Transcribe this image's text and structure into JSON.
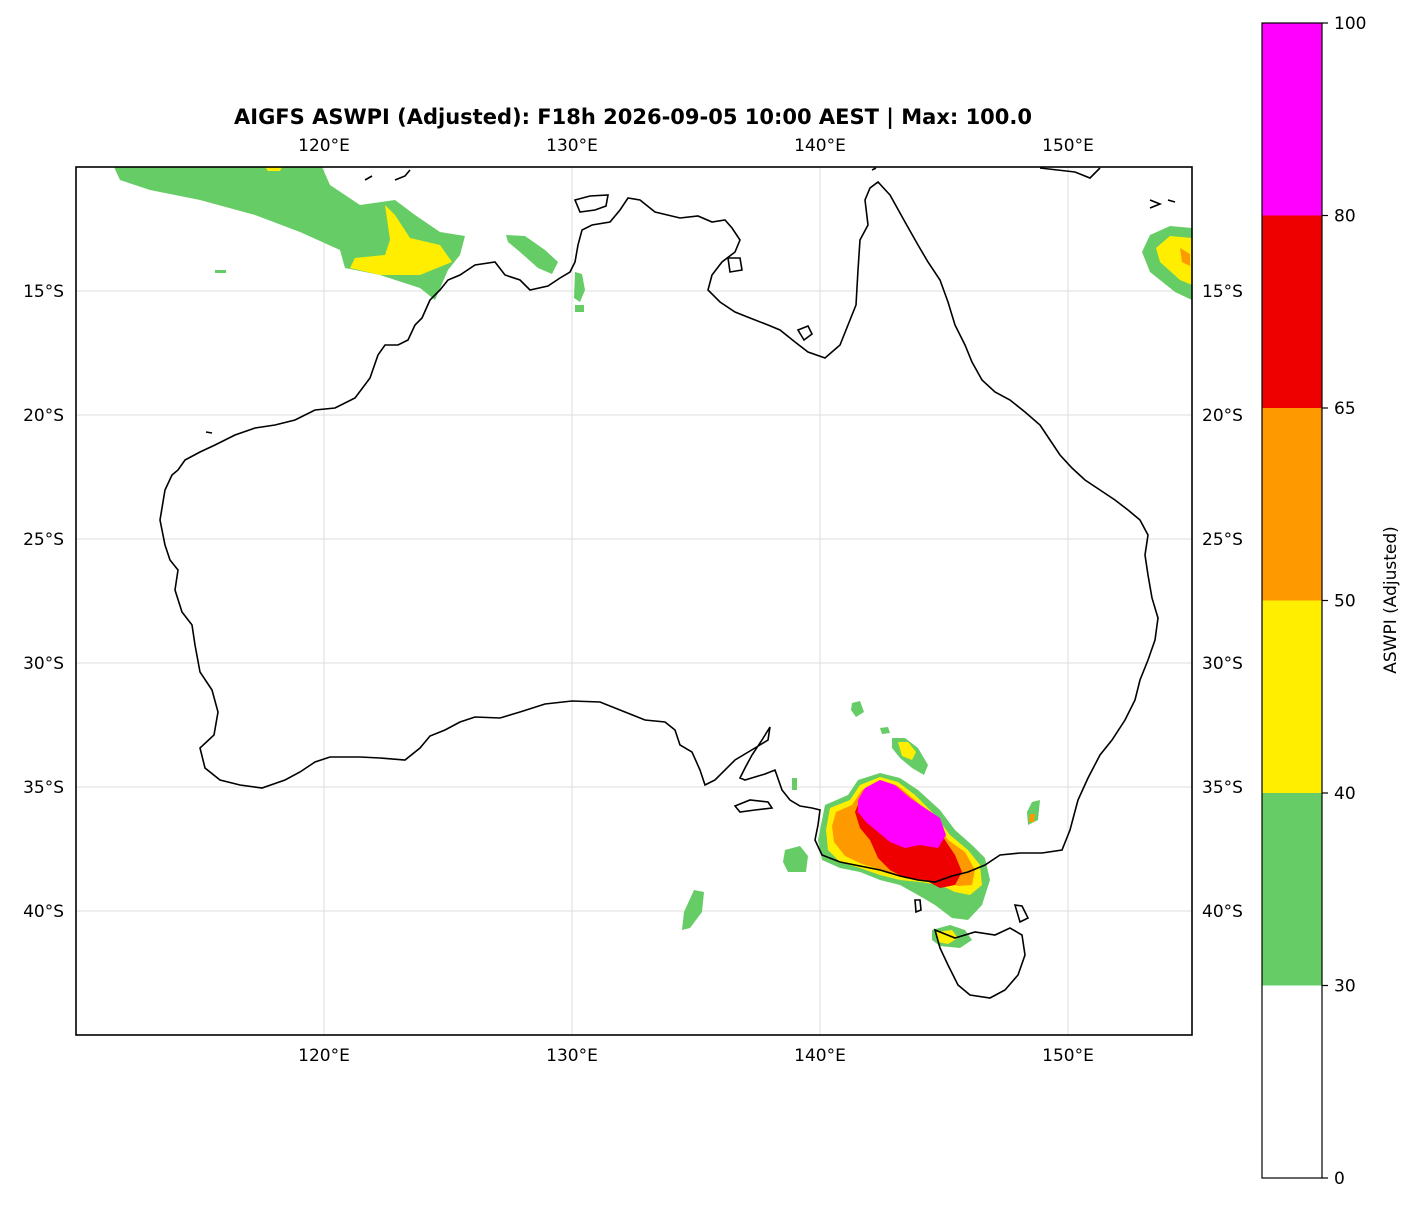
{
  "title": "AIGFS ASWPI (Adjusted): F18h 2026-09-05 10:00 AEST | Max: 100.0",
  "map": {
    "lon_range": [
      110,
      155
    ],
    "lat_range": [
      -45,
      -10
    ],
    "lon_ticks": [
      120,
      130,
      140,
      150
    ],
    "lon_tick_labels": [
      "120°E",
      "130°E",
      "140°E",
      "150°E"
    ],
    "lat_ticks": [
      -15,
      -20,
      -25,
      -30,
      -35,
      -40
    ],
    "lat_tick_labels": [
      "15°S",
      "20°S",
      "25°S",
      "30°S",
      "35°S",
      "40°S"
    ],
    "gridlines": true
  },
  "colorbar": {
    "label": "ASWPI (Adjusted)",
    "levels": [
      0,
      30,
      40,
      50,
      65,
      80,
      100
    ],
    "level_labels": [
      "0",
      "30",
      "40",
      "50",
      "65",
      "80",
      "100"
    ],
    "colors": [
      "#ffffff",
      "#66cc66",
      "#ffee00",
      "#ff9900",
      "#ee0000",
      "#ff00ff"
    ],
    "placement": "right"
  },
  "colors": {
    "coastline": "#000000",
    "grid": "#dddddd"
  }
}
